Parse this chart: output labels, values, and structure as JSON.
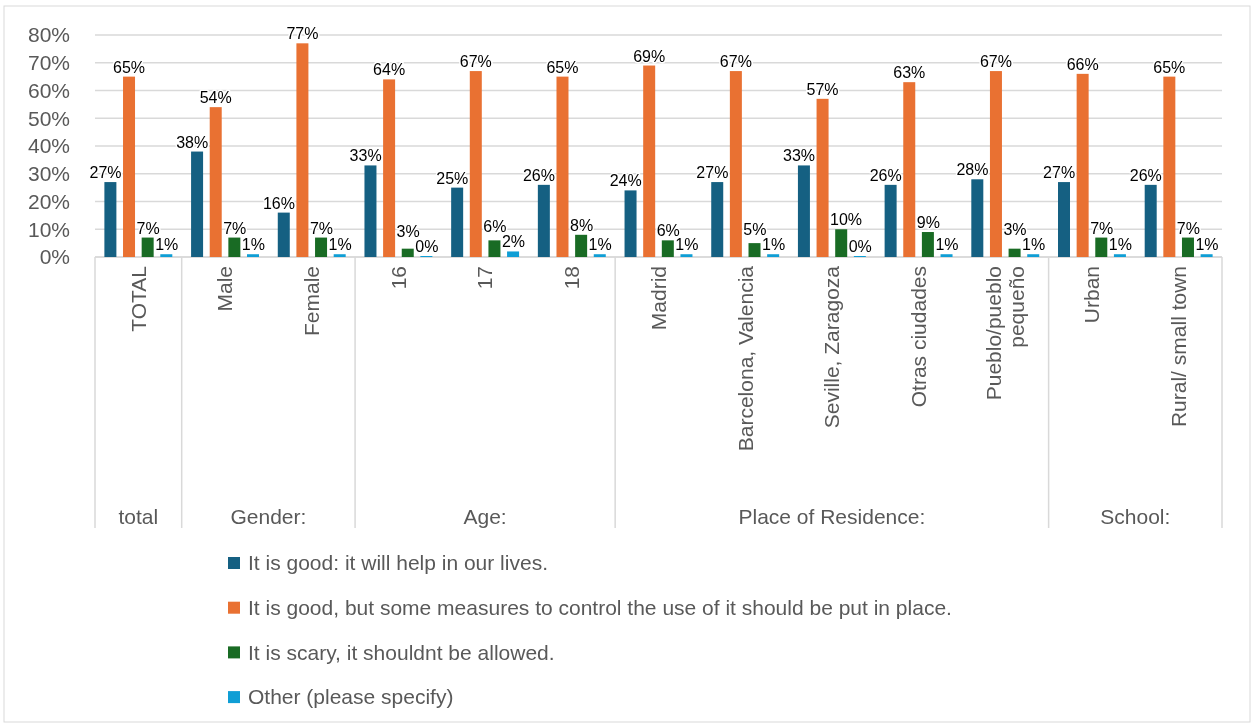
{
  "chart_data": {
    "type": "bar",
    "categories": [
      "TOTAL",
      "Male",
      "Female",
      "16",
      "17",
      "18",
      "Madrid",
      "Barcelona, Valencia",
      "Seville, Zaragoza",
      "Otras ciudades",
      "Pueblo/pueblo pequeño",
      "Urban",
      "Rural/ small town"
    ],
    "series": [
      {
        "name": "It is good: it will help in our lives.",
        "color": "#156082",
        "values": [
          27,
          38,
          16,
          33,
          25,
          26,
          24,
          27,
          33,
          26,
          28,
          27,
          26
        ],
        "value_labels": [
          "27%",
          "38%",
          "16%",
          "33%",
          "25%",
          "26%",
          "24%",
          "27%",
          "33%",
          "26%",
          "28%",
          "27%",
          "26%"
        ]
      },
      {
        "name": "It is good, but some measures to control the use of it should be put in place.",
        "color": "#e97132",
        "values": [
          65,
          54,
          77,
          64,
          67,
          65,
          69,
          67,
          57,
          63,
          67,
          66,
          65
        ],
        "value_labels": [
          "65%",
          "54%",
          "77%",
          "64%",
          "67%",
          "65%",
          "69%",
          "67%",
          "57%",
          "63%",
          "67%",
          "66%",
          "65%"
        ]
      },
      {
        "name": "It is scary, it shouldnt be allowed.",
        "color": "#196b24",
        "values": [
          7,
          7,
          7,
          3,
          6,
          8,
          6,
          5,
          10,
          9,
          3,
          7,
          7
        ],
        "value_labels": [
          "7%",
          "7%",
          "7%",
          "3%",
          "6%",
          "8%",
          "6%",
          "5%",
          "10%",
          "9%",
          "3%",
          "7%",
          "7%"
        ]
      },
      {
        "name": "Other (please specify)",
        "color": "#0f9ed5",
        "values": [
          1,
          1,
          1,
          0,
          2,
          1,
          1,
          1,
          0,
          1,
          1,
          1,
          1
        ],
        "value_labels": [
          "1%",
          "1%",
          "1%",
          "0%",
          "2%",
          "1%",
          "1%",
          "1%",
          "0%",
          "1%",
          "1%",
          "1%",
          "1%"
        ]
      }
    ],
    "ylim": [
      0,
      80
    ],
    "yticks": [
      {
        "value": 0,
        "label": "0%"
      },
      {
        "value": 10,
        "label": "10%"
      },
      {
        "value": 20,
        "label": "20%"
      },
      {
        "value": 30,
        "label": "30%"
      },
      {
        "value": 40,
        "label": "40%"
      },
      {
        "value": 50,
        "label": "50%"
      },
      {
        "value": 60,
        "label": "60%"
      },
      {
        "value": 70,
        "label": "70%"
      },
      {
        "value": 80,
        "label": "80%"
      }
    ],
    "grid": "y",
    "legend": "bottom",
    "annotations": [
      "total",
      "Gender:",
      "Age:",
      "Place of Residence:",
      "School:"
    ]
  }
}
